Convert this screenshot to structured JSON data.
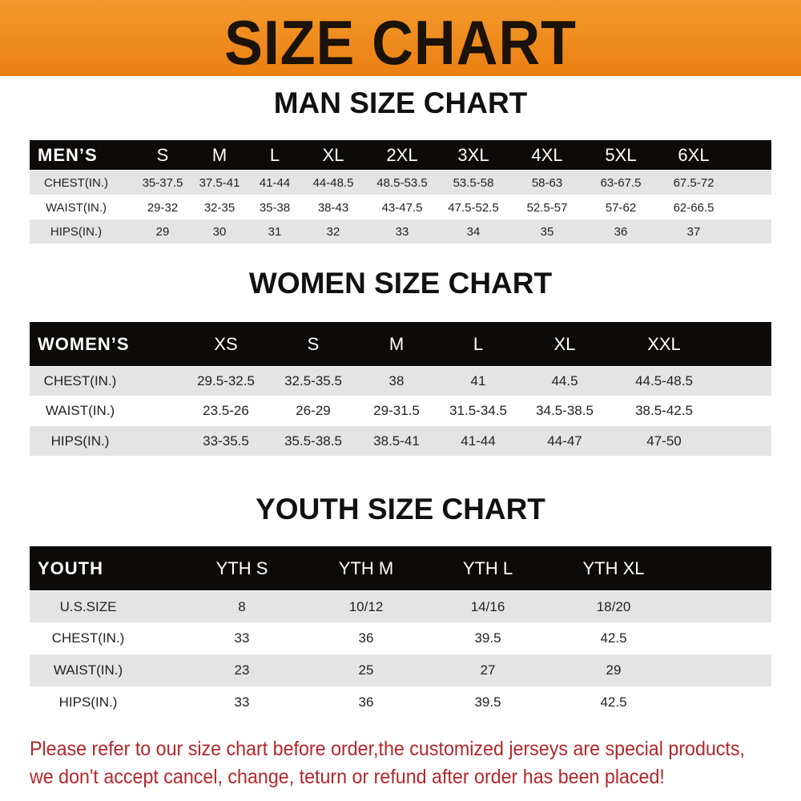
{
  "banner": {
    "title": "SIZE CHART",
    "color": "#ef8a1c"
  },
  "men": {
    "title": "MAN SIZE CHART",
    "header": [
      "MEN’S",
      "S",
      "M",
      "L",
      "XL",
      "2XL",
      "3XL",
      "4XL",
      "5XL",
      "6XL"
    ],
    "rows": [
      [
        "CHEST(IN.)",
        "35-37.5",
        "37.5-41",
        "41-44",
        "44-48.5",
        "48.5-53.5",
        "53.5-58",
        "58-63",
        "63-67.5",
        "67.5-72"
      ],
      [
        "WAIST(IN.)",
        "29-32",
        "32-35",
        "35-38",
        "38-43",
        "43-47.5",
        "47.5-52.5",
        "52.5-57",
        "57-62",
        "62-66.5"
      ],
      [
        "HIPS(IN.)",
        "29",
        "30",
        "31",
        "32",
        "33",
        "34",
        "35",
        "36",
        "37"
      ]
    ]
  },
  "women": {
    "title": "WOMEN SIZE CHART",
    "header": [
      "WOMEN’S",
      "XS",
      "S",
      "M",
      "L",
      "XL",
      "XXL"
    ],
    "rows": [
      [
        "CHEST(IN.)",
        "29.5-32.5",
        "32.5-35.5",
        "38",
        "41",
        "44.5",
        "44.5-48.5"
      ],
      [
        "WAIST(IN.)",
        "23.5-26",
        "26-29",
        "29-31.5",
        "31.5-34.5",
        "34.5-38.5",
        "38.5-42.5"
      ],
      [
        "HIPS(IN.)",
        "33-35.5",
        "35.5-38.5",
        "38.5-41",
        "41-44",
        "44-47",
        "47-50"
      ]
    ]
  },
  "youth": {
    "title": "YOUTH SIZE CHART",
    "header": [
      "YOUTH",
      "YTH S",
      "YTH M",
      "YTH L",
      "YTH XL"
    ],
    "rows": [
      [
        "U.S.SIZE",
        "8",
        "10/12",
        "14/16",
        "18/20"
      ],
      [
        "CHEST(IN.)",
        "33",
        "36",
        "39.5",
        "42.5"
      ],
      [
        "WAIST(IN.)",
        "23",
        "25",
        "27",
        "29"
      ],
      [
        "HIPS(IN.)",
        "33",
        "36",
        "39.5",
        "42.5"
      ]
    ]
  },
  "notice": {
    "line1": "Please refer to our size chart before order,the customized jerseys are special products,",
    "line2": "we don't accept cancel, change, teturn or refund after order has been placed!",
    "color": "#b3262a"
  }
}
